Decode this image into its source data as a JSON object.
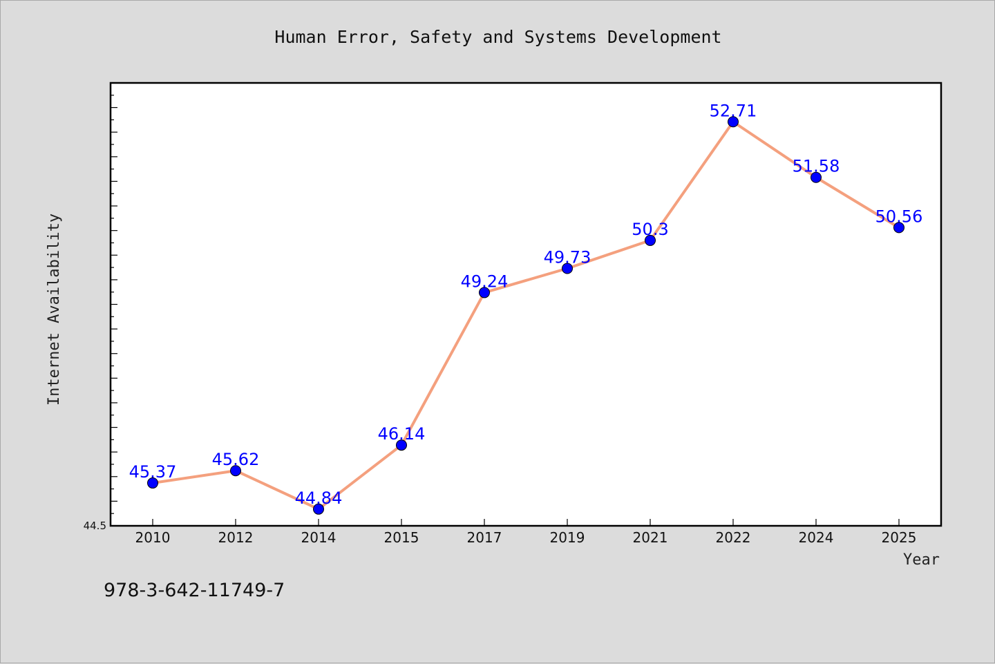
{
  "chart_data": {
    "type": "line",
    "title": "Human Error, Safety and Systems Development",
    "xlabel": "Year",
    "ylabel": "Internet Availability",
    "categories": [
      "2010",
      "2012",
      "2014",
      "2015",
      "2017",
      "2019",
      "2021",
      "2022",
      "2024",
      "2025"
    ],
    "series": [
      {
        "values": [
          45.37,
          45.62,
          44.84,
          46.14,
          49.24,
          49.73,
          50.3,
          52.71,
          51.58,
          50.56
        ],
        "data_labels": [
          "45.37",
          "45.62",
          "44.84",
          "46.14",
          "49.24",
          "49.73",
          "50.3",
          "52.71",
          "51.58",
          "50.56"
        ],
        "line_color": "#f4a07e",
        "marker_color": "#0000ff"
      }
    ],
    "ylim": [
      44.5,
      53.5
    ],
    "ytick_labels": [
      "44.5"
    ],
    "grid": false,
    "legend": "none"
  },
  "footer": {
    "isbn": "978-3-642-11749-7"
  }
}
